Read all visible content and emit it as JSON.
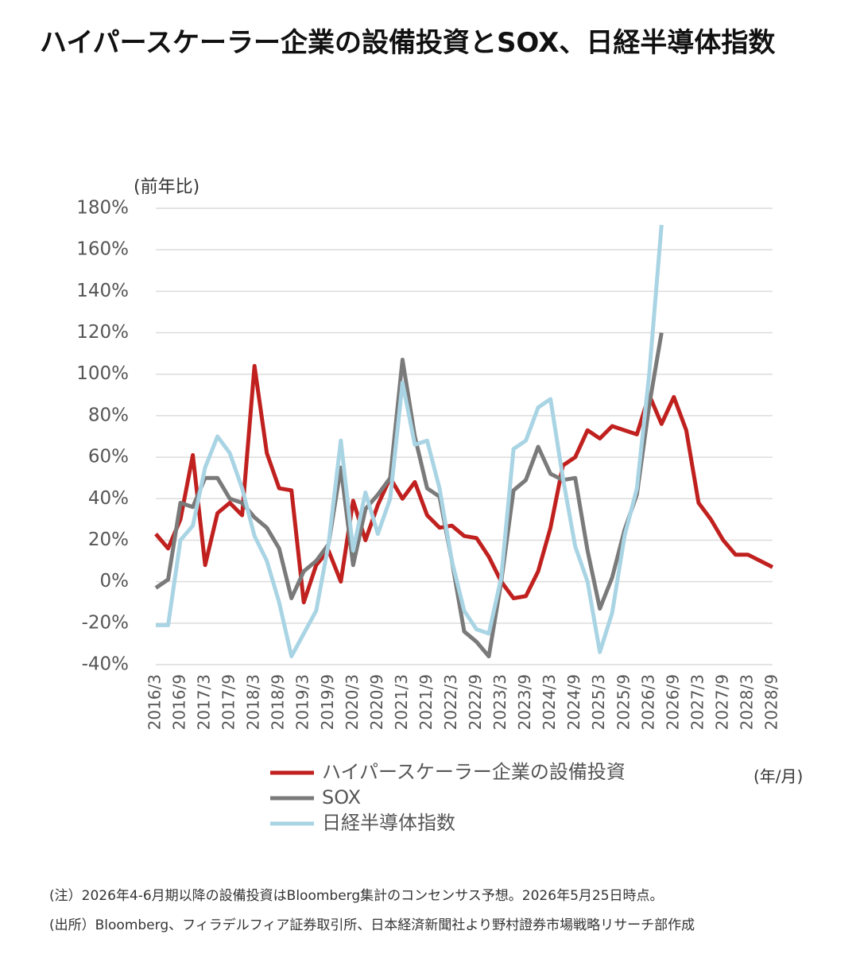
{
  "chart_data": {
    "type": "line",
    "title": "ハイパースケーラー企業の設備投資とSOX、日経半導体指数",
    "y_label": "(前年比)",
    "x_label": "(年/月)",
    "notes": [
      "(注）2026年4-6月期以降の設備投資はBloomberg集計のコンセンサス予想。2026年5月25日時点。",
      "(出所）Bloomberg、フィラデルフィア証券取引所、日本経済新聞社より野村證券市場戦略リサーチ部作成"
    ],
    "categories": [
      "2016/3",
      null,
      "2016/9",
      null,
      "2017/3",
      null,
      "2017/9",
      null,
      "2018/3",
      null,
      "2018/9",
      null,
      "2019/3",
      null,
      "2019/9",
      null,
      "2020/3",
      null,
      "2020/9",
      null,
      "2021/3",
      null,
      "2021/9",
      null,
      "2022/3",
      null,
      "2022/9",
      null,
      "2023/3",
      null,
      "2023/9",
      null,
      "2024/3",
      null,
      "2024/9",
      null,
      "2025/3",
      null,
      "2025/9",
      null,
      "2026/3",
      null,
      "2026/9",
      null,
      "2027/3",
      null,
      "2027/9",
      null,
      "2028/3",
      null,
      "2028/9"
    ],
    "series": [
      {
        "name": "ハイパースケーラー企業の設備投資",
        "color": "#c0211f",
        "values": [
          23,
          16,
          30,
          61,
          8,
          33,
          38,
          32,
          104,
          62,
          45,
          44,
          -10,
          8,
          15,
          0,
          39,
          20,
          37,
          50,
          40,
          48,
          32,
          26,
          27,
          22,
          21,
          12,
          0,
          -8,
          -7,
          5,
          26,
          56,
          60,
          73,
          69,
          75,
          73,
          71,
          90,
          76,
          89,
          73,
          38,
          30,
          20,
          13,
          13,
          10,
          7
        ]
      },
      {
        "name": "SOX",
        "color": "#7a7a7a",
        "values": [
          -3,
          1,
          38,
          36,
          50,
          50,
          40,
          38,
          31,
          26,
          16,
          -8,
          5,
          10,
          18,
          55,
          8,
          35,
          42,
          50,
          107,
          70,
          45,
          41,
          10,
          -24,
          -29,
          -36,
          0,
          44,
          49,
          65,
          52,
          49,
          50,
          15,
          -13,
          2,
          25,
          42,
          85,
          120,
          null,
          null,
          null,
          null,
          null,
          null,
          null,
          null,
          null
        ]
      },
      {
        "name": "日経半導体指数",
        "color": "#a9d4e4",
        "values": [
          -21,
          -21,
          20,
          27,
          55,
          70,
          62,
          45,
          22,
          10,
          -10,
          -36,
          -25,
          -14,
          18,
          68,
          15,
          43,
          23,
          40,
          96,
          66,
          68,
          45,
          10,
          -14,
          -23,
          -25,
          2,
          64,
          68,
          84,
          88,
          50,
          17,
          0,
          -34,
          -15,
          22,
          45,
          100,
          172,
          null,
          null,
          null,
          null,
          null,
          null,
          null,
          null,
          null
        ]
      }
    ],
    "ylim": [
      -40,
      180
    ],
    "yticks": [
      {
        "value": -40,
        "label": "-40%"
      },
      {
        "value": -20,
        "label": "-20%"
      },
      {
        "value": 0,
        "label": "0%"
      },
      {
        "value": 20,
        "label": "20%"
      },
      {
        "value": 40,
        "label": "40%"
      },
      {
        "value": 60,
        "label": "60%"
      },
      {
        "value": 80,
        "label": "80%"
      },
      {
        "value": 100,
        "label": "100%"
      },
      {
        "value": 120,
        "label": "120%"
      },
      {
        "value": 140,
        "label": "140%"
      },
      {
        "value": 160,
        "label": "160%"
      },
      {
        "value": 180,
        "label": "180%"
      }
    ],
    "grid": true
  }
}
